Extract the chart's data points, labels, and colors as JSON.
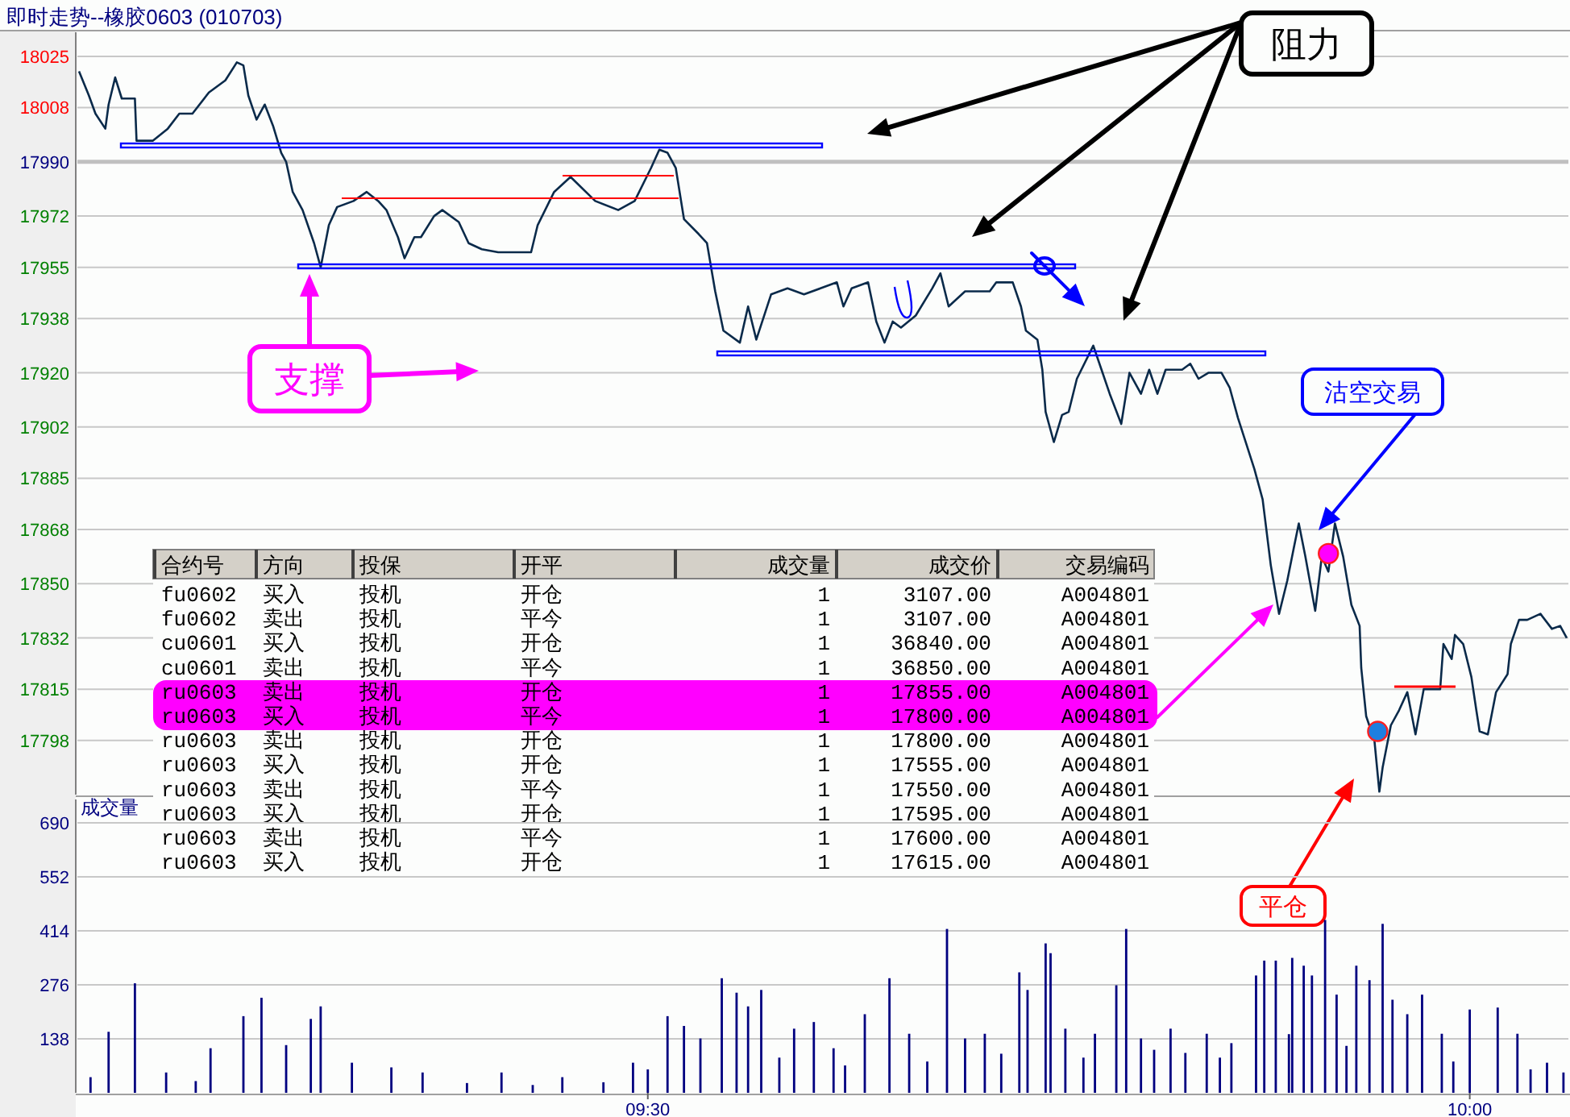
{
  "chart_data": [
    {
      "type": "line",
      "title": "即时走势--橡胶0603 (010703)",
      "x": [
        9.154,
        9.16,
        9.164,
        9.17,
        9.172,
        9.176,
        9.18,
        9.188,
        9.189,
        9.199,
        9.208,
        9.215,
        9.223,
        9.233,
        9.243,
        9.25,
        9.254,
        9.257,
        9.262,
        9.267,
        9.272,
        9.277,
        9.28,
        9.284,
        9.29,
        9.297,
        9.301,
        9.306,
        9.311,
        9.321,
        9.329,
        9.336,
        9.341,
        9.348,
        9.352,
        9.358,
        9.362,
        9.37,
        9.375,
        9.385,
        9.391,
        9.399,
        9.409,
        9.429,
        9.433,
        9.443,
        9.453,
        9.468,
        9.482,
        9.492,
        9.502,
        9.507,
        9.512,
        9.517,
        9.522,
        9.531,
        9.536,
        9.541,
        9.546,
        9.556,
        9.561,
        9.566,
        9.575,
        9.585,
        9.595,
        9.605,
        9.615,
        9.619,
        9.624,
        9.634,
        9.639,
        9.644,
        9.649,
        9.654,
        9.663,
        9.673,
        9.678,
        9.683,
        9.693,
        9.708,
        9.712,
        9.722,
        9.727,
        9.73,
        9.737,
        9.74,
        9.742,
        9.747,
        9.752,
        9.756,
        9.761,
        9.771,
        9.776,
        9.781,
        9.788,
        9.793,
        9.8,
        9.805,
        9.81,
        9.815,
        9.825,
        9.83,
        9.835,
        9.841,
        9.849,
        9.854,
        9.859,
        9.869,
        9.874,
        9.879,
        9.884,
        9.889,
        9.893,
        9.896,
        9.9,
        9.906,
        9.91,
        9.914,
        9.918,
        9.923,
        9.928,
        9.933,
        9.934,
        9.937,
        9.942,
        9.945,
        9.947,
        9.952,
        9.957,
        9.962,
        9.967,
        9.972,
        9.982,
        9.984,
        9.989,
        9.991,
        9.996,
        10.001,
        10.004,
        10.006,
        10.011,
        10.016,
        10.023,
        10.025,
        10.03,
        10.035,
        10.043,
        10.05,
        10.055,
        10.059
      ],
      "series": [
        {
          "color": "#0a2a4a",
          "values": [
            18020,
            18012,
            18006,
            18001,
            18009,
            18018,
            18011,
            18011,
            17997,
            17997,
            18001,
            18006,
            18006,
            18013,
            18017,
            18023,
            18022,
            18012,
            18004,
            18009,
            18002,
            17993,
            17990,
            17980,
            17974,
            17963,
            17955,
            17969,
            17975,
            17977,
            17980,
            17977,
            17974,
            17965,
            17958,
            17965,
            17965,
            17972,
            17974,
            17970,
            17963,
            17961,
            17960,
            17960,
            17969,
            17980,
            17985,
            17977,
            17974,
            17977,
            17988,
            17994,
            17993,
            17988,
            17971,
            17966,
            17963,
            17947,
            17934,
            17930,
            17942,
            17931,
            17946,
            17948,
            17946,
            17948,
            17950,
            17942,
            17948,
            17950,
            17937,
            17930,
            17937,
            17935,
            17939,
            17948,
            17953,
            17942,
            17947,
            17947,
            17950,
            17950,
            17942,
            17934,
            17931,
            17921,
            17907,
            17897,
            17906,
            17907,
            17918,
            17929,
            17921,
            17913,
            17903,
            17920,
            17913,
            17921,
            17913,
            17921,
            17921,
            17923,
            17918,
            17920,
            17920,
            17915,
            17905,
            17888,
            17878,
            17856,
            17840,
            17851,
            17862,
            17870,
            17859,
            17841,
            17859,
            17854,
            17870,
            17859,
            17843,
            17836,
            17822,
            17806,
            17798,
            17781,
            17789,
            17803,
            17808,
            17814,
            17800,
            17815,
            17815,
            17830,
            17825,
            17833,
            17830,
            17819,
            17808,
            17801,
            17800,
            17814,
            17820,
            17830,
            17838,
            17838,
            17840,
            17835,
            17836,
            17832
          ]
        },
        {
          "type": "scatter",
          "x": [
            9.914
          ],
          "values": [
            17860
          ],
          "color": "#ff00ff"
        },
        {
          "type": "scatter",
          "x": [
            9.944
          ],
          "values": [
            17801
          ],
          "color": "#1e7fe0"
        }
      ],
      "xlim": [
        9.153,
        10.06
      ],
      "ylim": [
        17780,
        18033
      ],
      "yticks": [
        18025,
        18008,
        17990,
        17972,
        17955,
        17938,
        17920,
        17902,
        17885,
        17868,
        17850,
        17832,
        17815,
        17798
      ],
      "grid": "y",
      "tick_labels": "y",
      "ref_lines": [
        {
          "axis": "y",
          "value": 17990,
          "color": "#c0c0c0"
        }
      ],
      "annotations": [
        "阻力",
        "支撑",
        "沽空交易",
        "平仓",
        "合约号",
        "方向",
        "投保",
        "开平",
        "成交量",
        "成交价",
        "交易编码",
        "fu0602",
        "买入",
        "投机",
        "开仓",
        "1",
        "3107.00",
        "A004801",
        "fu0602",
        "卖出",
        "投机",
        "平今",
        "1",
        "3107.00",
        "A004801",
        "cu0601",
        "买入",
        "投机",
        "开仓",
        "1",
        "36840.00",
        "A004801",
        "cu0601",
        "卖出",
        "投机",
        "平今",
        "1",
        "36850.00",
        "A004801",
        "ru0603",
        "卖出",
        "投机",
        "开仓",
        "1",
        "17855.00",
        "A004801",
        "ru0603",
        "买入",
        "投机",
        "平今",
        "1",
        "17800.00",
        "A004801",
        "ru0603",
        "卖出",
        "投机",
        "开仓",
        "1",
        "17800.00",
        "A004801",
        "ru0603",
        "买入",
        "投机",
        "开仓",
        "1",
        "17555.00",
        "A004801",
        "ru0603",
        "卖出",
        "投机",
        "平今",
        "1",
        "17550.00",
        "A004801",
        "ru0603",
        "买入",
        "投机",
        "开仓",
        "1",
        "17595.00",
        "A004801",
        "ru0603",
        "卖出",
        "投机",
        "平今",
        "1",
        "17600.00",
        "A004801",
        "ru0603",
        "买入",
        "投机",
        "开仓",
        "1",
        "17615.00",
        "A004801"
      ]
    },
    {
      "type": "bar",
      "title": "成交量",
      "color": "#000080",
      "x": [
        9.161,
        9.172,
        9.188,
        9.207,
        9.225,
        9.234,
        9.254,
        9.265,
        9.28,
        9.295,
        9.301,
        9.32,
        9.344,
        9.363,
        9.39,
        9.411,
        9.43,
        9.448,
        9.473,
        9.491,
        9.5,
        9.512,
        9.522,
        9.532,
        9.545,
        9.554,
        9.561,
        9.569,
        9.58,
        9.589,
        9.601,
        9.613,
        9.62,
        9.632,
        9.647,
        9.659,
        9.67,
        9.682,
        9.693,
        9.705,
        9.715,
        9.726,
        9.731,
        9.742,
        9.745,
        9.754,
        9.765,
        9.772,
        9.785,
        9.791,
        9.8,
        9.808,
        9.818,
        9.827,
        9.84,
        9.848,
        9.855,
        9.87,
        9.875,
        9.882,
        9.89,
        9.892,
        9.899,
        9.904,
        9.912,
        9.919,
        9.925,
        9.931,
        9.939,
        9.947,
        9.953,
        9.962,
        9.971,
        9.983,
        9.99,
        10.0,
        10.017,
        10.029,
        10.037,
        10.047,
        10.057
      ],
      "values": [
        40,
        156,
        280,
        52,
        30,
        114,
        196,
        243,
        122,
        189,
        221,
        77,
        65,
        52,
        25,
        52,
        20,
        40,
        27,
        77,
        60,
        196,
        171,
        139,
        293,
        256,
        221,
        263,
        90,
        164,
        181,
        114,
        70,
        201,
        293,
        151,
        80,
        419,
        139,
        151,
        100,
        308,
        263,
        382,
        357,
        164,
        90,
        151,
        275,
        419,
        139,
        110,
        164,
        102,
        151,
        90,
        127,
        300,
        338,
        338,
        150,
        345,
        325,
        300,
        442,
        251,
        120,
        325,
        288,
        432,
        238,
        201,
        251,
        151,
        80,
        213,
        218,
        151,
        60,
        77,
        52
      ],
      "xlim": [
        9.153,
        10.06
      ],
      "ylim": [
        0,
        750
      ],
      "yticks": [
        138,
        276,
        414,
        552,
        690
      ],
      "xticks": [
        {
          "value": 9.5,
          "label": "09:30"
        },
        {
          "value": 10,
          "label": "10:00"
        }
      ],
      "grid": "y"
    }
  ]
}
